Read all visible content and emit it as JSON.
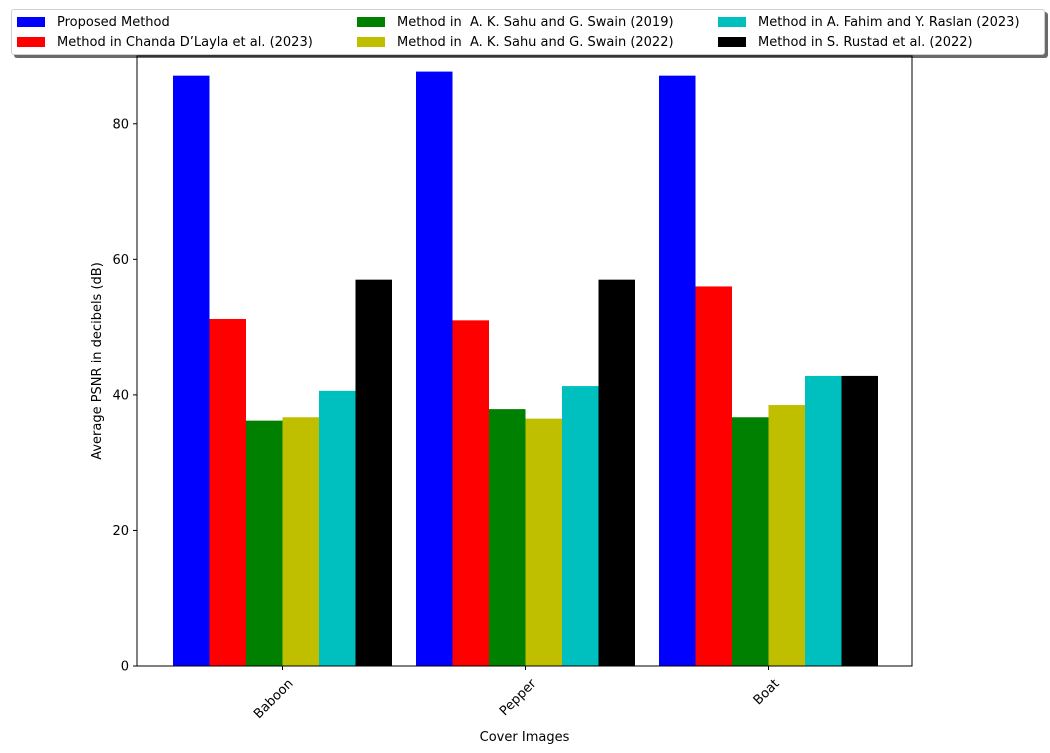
{
  "chart_data": {
    "type": "bar",
    "title": "",
    "xlabel": "Cover Images",
    "ylabel": "Average PSNR in decibels (dB)",
    "ylim": [
      0,
      90
    ],
    "yticks": [
      0,
      20,
      40,
      60,
      80
    ],
    "categories": [
      "Baboon",
      "Pepper",
      "Boat"
    ],
    "series": [
      {
        "name": "Proposed Method",
        "color": "#0000ff",
        "values": [
          87.1,
          87.7,
          87.1
        ]
      },
      {
        "name": "Method in Chanda D’Layla et al. (2023)",
        "color": "#ff0000",
        "values": [
          51.2,
          51.0,
          56.0
        ]
      },
      {
        "name": "Method in  A. K. Sahu and G. Swain (2019)",
        "color": "#008000",
        "values": [
          36.2,
          37.9,
          36.7
        ]
      },
      {
        "name": "Method in  A. K. Sahu and G. Swain (2022)",
        "color": "#bfbf00",
        "values": [
          36.7,
          36.5,
          38.5
        ]
      },
      {
        "name": "Method in A. Fahim and Y. Raslan (2023)",
        "color": "#00bfbf",
        "values": [
          40.6,
          41.3,
          42.8
        ]
      },
      {
        "name": "Method in S. Rustad et al. (2022)",
        "color": "#000000",
        "values": [
          57.0,
          57.0,
          42.8
        ]
      }
    ],
    "legend_position": "top",
    "grid": false
  }
}
